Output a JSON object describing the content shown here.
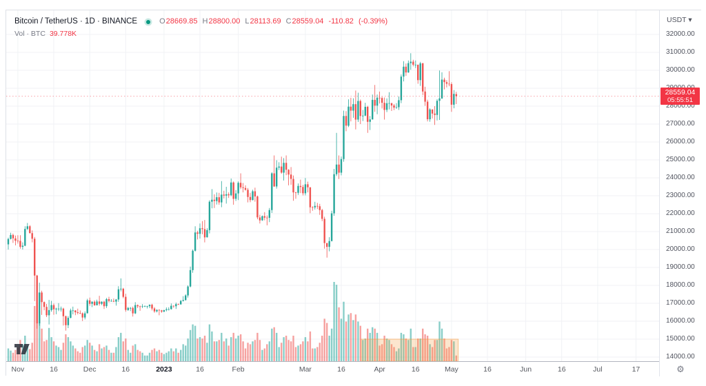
{
  "header": {
    "symbol_title": "Bitcoin / TetherUS · 1D · BINANCE",
    "ohlc": {
      "o_label": "O",
      "open": "28669.85",
      "h_label": "H",
      "high": "28800.00",
      "l_label": "L",
      "low": "28113.69",
      "c_label": "C",
      "close": "28559.04",
      "change": "-110.82",
      "change_pct": "(-0.39%)"
    },
    "volume_label": "Vol · BTC",
    "volume_value": "39.778K"
  },
  "icons": {
    "gear": "⚙",
    "caret_down": "▾"
  },
  "price_axis": {
    "currency_label": "USDT",
    "labels": [
      "32000.00",
      "31000.00",
      "30000.00",
      "29000.00",
      "28000.00",
      "27000.00",
      "26000.00",
      "25000.00",
      "24000.00",
      "23000.00",
      "22000.00",
      "21000.00",
      "20000.00",
      "19000.00",
      "18000.00",
      "17000.00",
      "16000.00",
      "15000.00",
      "14000.00"
    ],
    "label_values": [
      32000,
      31000,
      30000,
      29000,
      28000,
      27000,
      26000,
      25000,
      24000,
      23000,
      22000,
      21000,
      20000,
      19000,
      18000,
      17000,
      16000,
      15000,
      14000
    ],
    "last_price_tag": {
      "price": "28559.04",
      "countdown": "05:55:51",
      "color": "#f23645"
    }
  },
  "time_axis": {
    "ticks": [
      {
        "label": "Nov",
        "day": 4,
        "bold": false
      },
      {
        "label": "16",
        "day": 19,
        "bold": false
      },
      {
        "label": "Dec",
        "day": 34,
        "bold": false
      },
      {
        "label": "16",
        "day": 49,
        "bold": false
      },
      {
        "label": "2023",
        "day": 65,
        "bold": true
      },
      {
        "label": "16",
        "day": 80,
        "bold": false
      },
      {
        "label": "Feb",
        "day": 96,
        "bold": false
      },
      {
        "label": "Mar",
        "day": 124,
        "bold": false
      },
      {
        "label": "16",
        "day": 139,
        "bold": false
      },
      {
        "label": "Apr",
        "day": 155,
        "bold": false
      },
      {
        "label": "16",
        "day": 170,
        "bold": false
      },
      {
        "label": "May",
        "day": 185,
        "bold": false
      },
      {
        "label": "16",
        "day": 200,
        "bold": false
      },
      {
        "label": "Jun",
        "day": 216,
        "bold": false
      },
      {
        "label": "16",
        "day": 231,
        "bold": false
      },
      {
        "label": "Jul",
        "day": 246,
        "bold": false
      },
      {
        "label": "17",
        "day": 262,
        "bold": false
      }
    ]
  },
  "chart_data": {
    "type": "candlestick",
    "title": "Bitcoin / TetherUS 1D BINANCE",
    "symbol": "BTC/USDT",
    "interval": "1D",
    "exchange": "BINANCE",
    "start_date": "2022-10-28",
    "yaxis": {
      "label_min": 14000,
      "label_max": 32000,
      "step": 1000,
      "unit": "USDT",
      "grid": true
    },
    "last": {
      "price": 28559.04,
      "countdown": "05:55:51",
      "direction": "down"
    },
    "colors": {
      "up": "#26a69a",
      "down": "#ef5350",
      "vol_up": "rgba(38,166,154,0.55)",
      "vol_down": "rgba(239,83,80,0.55)",
      "last_line": "rgba(242,54,69,0.45)",
      "grid": "#f0f2f5",
      "overlay": "#f59b3c"
    },
    "overlay_rect": {
      "start_day": 147.3,
      "end_day": 187.8,
      "volume_top_k": 156,
      "fill_opacity": 0.25,
      "note": "orange highlight drawing over April volume pane"
    },
    "candles_ohlc": [
      [
        20290,
        20660,
        20000,
        20590
      ],
      [
        20590,
        20940,
        20560,
        20810
      ],
      [
        20810,
        20890,
        20370,
        20620
      ],
      [
        20620,
        20780,
        20230,
        20490
      ],
      [
        20490,
        20800,
        20330,
        20480
      ],
      [
        20480,
        20800,
        20050,
        20150
      ],
      [
        20150,
        20400,
        20000,
        20210
      ],
      [
        20210,
        21300,
        20180,
        21150
      ],
      [
        21150,
        21480,
        21080,
        21300
      ],
      [
        21300,
        21360,
        20900,
        20910
      ],
      [
        20910,
        21070,
        20400,
        20600
      ],
      [
        20600,
        20700,
        17120,
        18550
      ],
      [
        18550,
        18590,
        15590,
        15880
      ],
      [
        15880,
        18150,
        15750,
        17600
      ],
      [
        17600,
        17700,
        16350,
        17070
      ],
      [
        17070,
        17100,
        16610,
        16800
      ],
      [
        16800,
        16960,
        16230,
        16330
      ],
      [
        16330,
        17190,
        15815,
        16620
      ],
      [
        16620,
        17135,
        16530,
        16900
      ],
      [
        16900,
        16990,
        16360,
        16660
      ],
      [
        16660,
        16750,
        16390,
        16700
      ],
      [
        16700,
        17010,
        16560,
        16700
      ],
      [
        16700,
        16820,
        16540,
        16700
      ],
      [
        16700,
        16750,
        15760,
        16280
      ],
      [
        16280,
        16310,
        15476,
        15780
      ],
      [
        15780,
        16290,
        15615,
        16190
      ],
      [
        16190,
        16700,
        16160,
        16600
      ],
      [
        16600,
        16810,
        16380,
        16600
      ],
      [
        16600,
        16610,
        16340,
        16500
      ],
      [
        16500,
        16700,
        16380,
        16460
      ],
      [
        16460,
        16600,
        16400,
        16440
      ],
      [
        16440,
        16490,
        16010,
        16210
      ],
      [
        16210,
        16550,
        16100,
        16440
      ],
      [
        16440,
        17250,
        16430,
        17160
      ],
      [
        17160,
        17320,
        16860,
        16970
      ],
      [
        16970,
        17110,
        16790,
        17090
      ],
      [
        17090,
        17160,
        16860,
        16890
      ],
      [
        16890,
        17200,
        16880,
        17100
      ],
      [
        17100,
        17420,
        16870,
        16970
      ],
      [
        16970,
        17110,
        16900,
        17090
      ],
      [
        17090,
        17140,
        16680,
        16840
      ],
      [
        16840,
        17300,
        16740,
        17230
      ],
      [
        17230,
        17360,
        17050,
        17130
      ],
      [
        17130,
        17230,
        17090,
        17130
      ],
      [
        17130,
        17270,
        17070,
        17090
      ],
      [
        17090,
        17240,
        16870,
        17210
      ],
      [
        17210,
        17950,
        17080,
        17780
      ],
      [
        17780,
        18390,
        17660,
        17810
      ],
      [
        17810,
        17860,
        17280,
        17360
      ],
      [
        17360,
        17530,
        16530,
        16630
      ],
      [
        16630,
        16800,
        16580,
        16740
      ],
      [
        16740,
        16790,
        16560,
        16740
      ],
      [
        16740,
        16820,
        16260,
        16440
      ],
      [
        16440,
        17060,
        16400,
        16900
      ],
      [
        16900,
        16930,
        16730,
        16830
      ],
      [
        16830,
        16870,
        16580,
        16820
      ],
      [
        16820,
        16950,
        16730,
        16840
      ],
      [
        16840,
        16880,
        16790,
        16840
      ],
      [
        16840,
        16860,
        16710,
        16840
      ],
      [
        16840,
        16940,
        16730,
        16920
      ],
      [
        16920,
        16970,
        16600,
        16710
      ],
      [
        16710,
        16790,
        16470,
        16550
      ],
      [
        16550,
        16660,
        16490,
        16630
      ],
      [
        16630,
        16670,
        16330,
        16600
      ],
      [
        16600,
        16630,
        16470,
        16540
      ],
      [
        16540,
        16630,
        16500,
        16620
      ],
      [
        16620,
        16770,
        16550,
        16670
      ],
      [
        16670,
        16780,
        16600,
        16670
      ],
      [
        16670,
        16990,
        16650,
        16860
      ],
      [
        16860,
        16880,
        16750,
        16840
      ],
      [
        16840,
        17040,
        16680,
        16950
      ],
      [
        16950,
        16980,
        16910,
        16940
      ],
      [
        16940,
        17180,
        16920,
        17130
      ],
      [
        17130,
        17400,
        17100,
        17180
      ],
      [
        17180,
        17500,
        17150,
        17440
      ],
      [
        17440,
        18000,
        17320,
        17940
      ],
      [
        17940,
        19050,
        17890,
        18850
      ],
      [
        18850,
        20000,
        18700,
        19930
      ],
      [
        19930,
        21300,
        19890,
        20950
      ],
      [
        20950,
        21050,
        20560,
        20880
      ],
      [
        20880,
        21450,
        20610,
        21190
      ],
      [
        21190,
        21590,
        20850,
        21140
      ],
      [
        21140,
        21650,
        20400,
        20680
      ],
      [
        20680,
        21190,
        20670,
        21080
      ],
      [
        21080,
        22750,
        20900,
        22670
      ],
      [
        22670,
        23370,
        22300,
        22780
      ],
      [
        22780,
        23080,
        22320,
        22710
      ],
      [
        22710,
        23180,
        22510,
        22920
      ],
      [
        22920,
        23160,
        22500,
        22630
      ],
      [
        22630,
        23820,
        22360,
        23060
      ],
      [
        23060,
        23280,
        22850,
        23010
      ],
      [
        23010,
        23500,
        22560,
        23080
      ],
      [
        23080,
        23190,
        22880,
        23030
      ],
      [
        23030,
        23960,
        22970,
        23740
      ],
      [
        23740,
        23800,
        22500,
        22830
      ],
      [
        22830,
        23320,
        22710,
        23130
      ],
      [
        23130,
        23800,
        22760,
        23720
      ],
      [
        23720,
        24250,
        23370,
        23470
      ],
      [
        23470,
        23710,
        23190,
        23430
      ],
      [
        23430,
        23580,
        23290,
        23330
      ],
      [
        23330,
        23430,
        22630,
        22930
      ],
      [
        22930,
        23160,
        22640,
        22760
      ],
      [
        22760,
        23340,
        22740,
        23250
      ],
      [
        23250,
        23450,
        22670,
        22960
      ],
      [
        22960,
        23010,
        21690,
        21790
      ],
      [
        21790,
        21940,
        21450,
        21630
      ],
      [
        21630,
        21900,
        21600,
        21860
      ],
      [
        21860,
        22090,
        21630,
        21780
      ],
      [
        21780,
        21900,
        21350,
        21770
      ],
      [
        21770,
        22320,
        21530,
        22200
      ],
      [
        22200,
        24310,
        22040,
        24250
      ],
      [
        24250,
        25250,
        23500,
        23520
      ],
      [
        23520,
        24980,
        23400,
        24570
      ],
      [
        24570,
        24870,
        24430,
        24630
      ],
      [
        24630,
        25180,
        24230,
        24290
      ],
      [
        24290,
        25100,
        23850,
        24840
      ],
      [
        24840,
        25250,
        24150,
        24450
      ],
      [
        24450,
        24480,
        23580,
        24180
      ],
      [
        24180,
        24600,
        23610,
        23940
      ],
      [
        23940,
        24130,
        22720,
        23190
      ],
      [
        23190,
        23220,
        22830,
        23160
      ],
      [
        23160,
        23690,
        23050,
        23550
      ],
      [
        23550,
        23900,
        23150,
        23490
      ],
      [
        23490,
        23610,
        23020,
        23140
      ],
      [
        23140,
        23990,
        23020,
        23640
      ],
      [
        23640,
        23790,
        23190,
        23470
      ],
      [
        23470,
        23480,
        22030,
        22360
      ],
      [
        22360,
        22410,
        22160,
        22350
      ],
      [
        22350,
        22660,
        22230,
        22430
      ],
      [
        22430,
        22600,
        22260,
        22410
      ],
      [
        22410,
        22550,
        21930,
        22200
      ],
      [
        22200,
        22270,
        21580,
        21710
      ],
      [
        21710,
        21830,
        20050,
        20360
      ],
      [
        20360,
        20370,
        19550,
        20150
      ],
      [
        20150,
        20690,
        19900,
        20470
      ],
      [
        20470,
        22160,
        20450,
        22020
      ],
      [
        22020,
        24500,
        21880,
        24200
      ],
      [
        24200,
        26510,
        24100,
        24740
      ],
      [
        24740,
        25250,
        23930,
        24290
      ],
      [
        24290,
        25190,
        24140,
        25050
      ],
      [
        25050,
        27750,
        24900,
        27450
      ],
      [
        27450,
        27720,
        26600,
        26910
      ],
      [
        26910,
        28380,
        26830,
        27970
      ],
      [
        27970,
        28470,
        27150,
        27750
      ],
      [
        27750,
        28440,
        27350,
        28110
      ],
      [
        28110,
        28870,
        26700,
        27250
      ],
      [
        27250,
        28750,
        27120,
        28290
      ],
      [
        28290,
        28370,
        27000,
        27450
      ],
      [
        27450,
        27790,
        27170,
        27470
      ],
      [
        27470,
        28190,
        27430,
        27960
      ],
      [
        27960,
        28020,
        26510,
        27120
      ],
      [
        27120,
        27450,
        26670,
        27260
      ],
      [
        27260,
        28650,
        27250,
        28350
      ],
      [
        28350,
        29180,
        27680,
        28030
      ],
      [
        28030,
        28650,
        27550,
        28470
      ],
      [
        28470,
        28810,
        28150,
        28450
      ],
      [
        28450,
        28530,
        27870,
        28190
      ],
      [
        28190,
        28480,
        27250,
        27790
      ],
      [
        27790,
        28430,
        27670,
        28160
      ],
      [
        28160,
        28780,
        27820,
        28170
      ],
      [
        28170,
        28180,
        27730,
        28040
      ],
      [
        28040,
        28120,
        27780,
        27920
      ],
      [
        27920,
        28170,
        27850,
        27940
      ],
      [
        27940,
        28540,
        27790,
        28330
      ],
      [
        28330,
        29770,
        28170,
        29650
      ],
      [
        29650,
        30510,
        29380,
        30200
      ],
      [
        30200,
        30380,
        29690,
        29880
      ],
      [
        29880,
        30550,
        29860,
        30400
      ],
      [
        30400,
        30955,
        30030,
        30480
      ],
      [
        30480,
        30590,
        30220,
        30310
      ],
      [
        30310,
        30550,
        30130,
        30310
      ],
      [
        30310,
        30320,
        29250,
        29450
      ],
      [
        29450,
        30470,
        29130,
        30390
      ],
      [
        30390,
        30420,
        28620,
        28820
      ],
      [
        28820,
        29080,
        28020,
        28250
      ],
      [
        28250,
        28360,
        27150,
        27270
      ],
      [
        27270,
        27880,
        27130,
        27820
      ],
      [
        27820,
        27820,
        27310,
        27590
      ],
      [
        27590,
        28000,
        26950,
        27510
      ],
      [
        27510,
        28390,
        27200,
        28300
      ],
      [
        28300,
        29990,
        27230,
        28430
      ],
      [
        28430,
        29890,
        28400,
        29480
      ],
      [
        29480,
        29590,
        28930,
        29340
      ],
      [
        29340,
        29450,
        29050,
        29250
      ],
      [
        29250,
        29950,
        29110,
        29230
      ],
      [
        29230,
        29330,
        27680,
        28080
      ],
      [
        28080,
        28900,
        27880,
        28680
      ],
      [
        28670,
        28800,
        28115,
        28560
      ]
    ],
    "volumes_k_btc": [
      90,
      75,
      60,
      80,
      95,
      150,
      120,
      180,
      110,
      85,
      130,
      390,
      400,
      355,
      230,
      140,
      150,
      235,
      170,
      140,
      110,
      100,
      80,
      130,
      190,
      170,
      140,
      110,
      90,
      70,
      60,
      100,
      110,
      150,
      130,
      110,
      80,
      70,
      120,
      90,
      100,
      110,
      80,
      60,
      60,
      100,
      170,
      200,
      140,
      160,
      80,
      60,
      110,
      120,
      80,
      70,
      60,
      40,
      40,
      60,
      80,
      90,
      70,
      80,
      60,
      50,
      60,
      70,
      90,
      70,
      90,
      60,
      80,
      120,
      110,
      160,
      220,
      260,
      250,
      160,
      170,
      160,
      180,
      130,
      260,
      210,
      140,
      140,
      150,
      200,
      140,
      160,
      110,
      170,
      200,
      160,
      180,
      190,
      140,
      90,
      130,
      120,
      140,
      150,
      200,
      150,
      80,
      90,
      120,
      140,
      230,
      240,
      200,
      100,
      130,
      170,
      180,
      150,
      140,
      180,
      100,
      110,
      120,
      140,
      170,
      140,
      210,
      90,
      90,
      100,
      130,
      180,
      300,
      270,
      180,
      230,
      560,
      540,
      380,
      300,
      420,
      280,
      330,
      340,
      290,
      330,
      280,
      250,
      150,
      160,
      230,
      200,
      240,
      230,
      200,
      110,
      120,
      180,
      160,
      150,
      120,
      100,
      70,
      90,
      200,
      190,
      160,
      150,
      230,
      100,
      100,
      160,
      160,
      230,
      190,
      180,
      120,
      100,
      150,
      150,
      280,
      230,
      160,
      90,
      100,
      150,
      140,
      39.778
    ]
  }
}
